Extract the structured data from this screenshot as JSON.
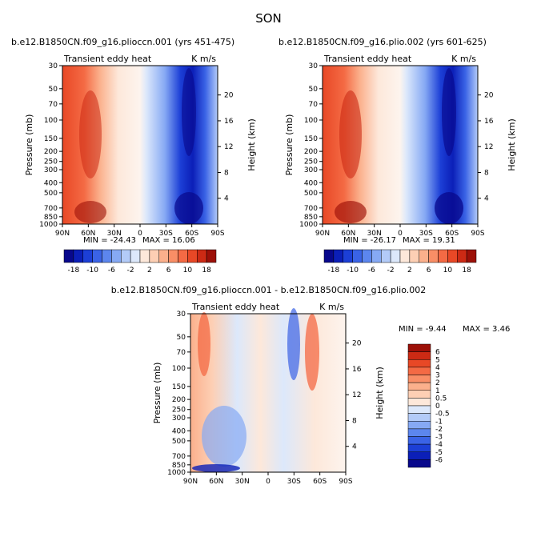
{
  "season_title": "SON",
  "chart_data": [
    {
      "type": "heatmap",
      "title": "b.e12.B1850CN.f09_g16.plioccn.001 (yrs 451-475)",
      "left_label": "Transient eddy heat",
      "right_label": "K m/s",
      "xlabel": "",
      "ylabel": "Pressure (mb)",
      "ylabel_right": "Height (km)",
      "x_ticks": [
        "90N",
        "60N",
        "30N",
        "0",
        "30S",
        "60S",
        "90S"
      ],
      "y_ticks": [
        "30",
        "50",
        "70",
        "100",
        "150",
        "200",
        "250",
        "300",
        "400",
        "500",
        "700",
        "850",
        "1000"
      ],
      "height_ticks": [
        "20",
        "16",
        "12",
        "8",
        "4"
      ],
      "min_label": "MIN = -24.43",
      "max_label": "MAX = 16.06",
      "colorbar_labels": [
        "-18",
        "-10",
        "-6",
        "-2",
        "2",
        "6",
        "10",
        "18"
      ],
      "colorbar_colors": [
        "#08088c",
        "#0b1fb8",
        "#1c3fd6",
        "#3a63e6",
        "#5c86ee",
        "#86a9f4",
        "#b3cbf8",
        "#dce8fb",
        "#fde8da",
        "#fdcfb4",
        "#fbb08c",
        "#f98e66",
        "#f46a44",
        "#e84826",
        "#cc2a14",
        "#9c1008"
      ],
      "max_value": 16.06,
      "min_value": -24.43
    },
    {
      "type": "heatmap",
      "title": "b.e12.B1850CN.f09_g16.plio.002 (yrs 601-625)",
      "left_label": "Transient eddy heat",
      "right_label": "K m/s",
      "xlabel": "",
      "ylabel": "Pressure (mb)",
      "ylabel_right": "Height (km)",
      "x_ticks": [
        "90N",
        "60N",
        "30N",
        "0",
        "30S",
        "60S",
        "90S"
      ],
      "y_ticks": [
        "30",
        "50",
        "70",
        "100",
        "150",
        "200",
        "250",
        "300",
        "400",
        "500",
        "700",
        "850",
        "1000"
      ],
      "height_ticks": [
        "20",
        "16",
        "12",
        "8",
        "4"
      ],
      "min_label": "MIN = -26.17",
      "max_label": "MAX = 19.31",
      "colorbar_labels": [
        "-18",
        "-10",
        "-6",
        "-2",
        "2",
        "6",
        "10",
        "18"
      ],
      "colorbar_colors": [
        "#08088c",
        "#0b1fb8",
        "#1c3fd6",
        "#3a63e6",
        "#5c86ee",
        "#86a9f4",
        "#b3cbf8",
        "#dce8fb",
        "#fde8da",
        "#fdcfb4",
        "#fbb08c",
        "#f98e66",
        "#f46a44",
        "#e84826",
        "#cc2a14",
        "#9c1008"
      ],
      "max_value": 19.31,
      "min_value": -26.17
    },
    {
      "type": "heatmap",
      "title": "b.e12.B1850CN.f09_g16.plioccn.001 - b.e12.B1850CN.f09_g16.plio.002",
      "left_label": "Transient eddy heat",
      "right_label": "K m/s",
      "xlabel": "",
      "ylabel": "Pressure (mb)",
      "ylabel_right": "Height (km)",
      "x_ticks": [
        "90N",
        "60N",
        "30N",
        "0",
        "30S",
        "60S",
        "90S"
      ],
      "y_ticks": [
        "30",
        "50",
        "70",
        "100",
        "150",
        "200",
        "250",
        "300",
        "400",
        "500",
        "700",
        "850",
        "1000"
      ],
      "height_ticks": [
        "20",
        "16",
        "12",
        "8",
        "4"
      ],
      "min_label": "MIN = -9.44",
      "max_label": "MAX = 3.46",
      "colorbar_labels": [
        "6",
        "5",
        "4",
        "3",
        "2",
        "1",
        "0.5",
        "0",
        "-0.5",
        "-1",
        "-2",
        "-3",
        "-4",
        "-5",
        "-6"
      ],
      "colorbar_colors": [
        "#9c1008",
        "#cc2a14",
        "#e84826",
        "#f46a44",
        "#f98e66",
        "#fbb08c",
        "#fdcfb4",
        "#fde8da",
        "#dce8fb",
        "#b3cbf8",
        "#86a9f4",
        "#5c86ee",
        "#3a63e6",
        "#1c3fd6",
        "#0b1fb8",
        "#08088c"
      ],
      "max_value": 3.46,
      "min_value": -9.44
    }
  ]
}
